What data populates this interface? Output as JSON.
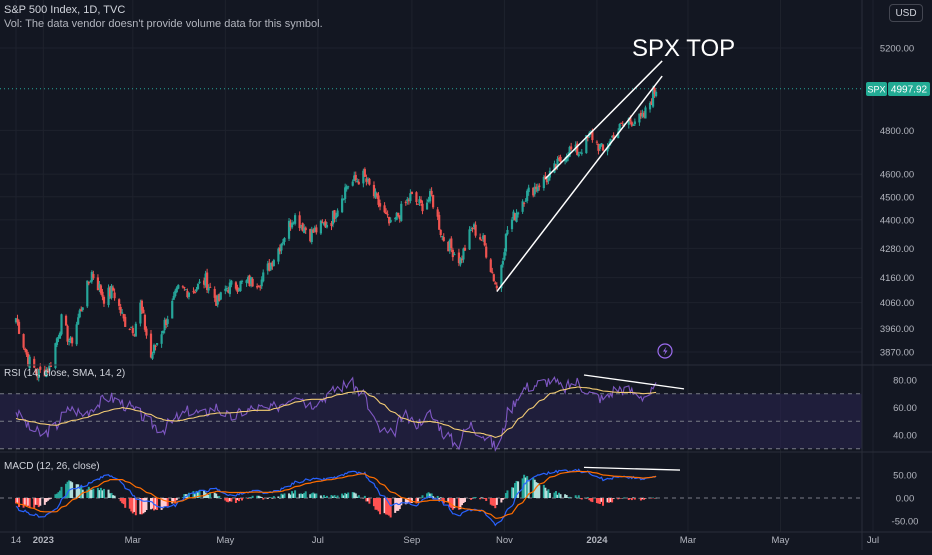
{
  "header": {
    "title": "S&P 500 Index, 1D, TVC",
    "volume_note": "Vol: The data vendor doesn't provide volume data for this symbol."
  },
  "currency_button": "USD",
  "annotation": "SPX TOP",
  "colors": {
    "background": "#131722",
    "up": "#26a69a",
    "down": "#ef5350",
    "rsi_line": "#7e57c2",
    "rsi_ma": "#f2cb74",
    "rsi_band": "#2a2450",
    "macd_line": "#2962ff",
    "signal_line": "#ff6d00",
    "price_label_bg": "#22ab94",
    "text": "#d1d4dc"
  },
  "chart_data": [
    {
      "type": "candlestick",
      "symbol": "SPX",
      "last_price": "4997.92",
      "price_ticks": [
        "5200.00",
        "4800.00",
        "4600.00",
        "4500.00",
        "4400.00",
        "4280.00",
        "4160.00",
        "4060.00",
        "3960.00",
        "3870.00"
      ],
      "date_ticks": [
        "14",
        "2023",
        "Mar",
        "May",
        "Jul",
        "Sep",
        "Nov",
        "2024",
        "Mar",
        "May",
        "Jul"
      ],
      "scale": "log",
      "trend_lines": [
        {
          "role": "wedge-lower",
          "from": [
            "2023-10-27",
            4104
          ],
          "to": [
            "2024-02-13",
            5060
          ]
        },
        {
          "role": "wedge-upper",
          "from": [
            "2023-11-28",
            4580
          ],
          "to": [
            "2024-02-13",
            5135
          ]
        }
      ],
      "closes_approx": [
        [
          "2022-12-14",
          4000
        ],
        [
          "2022-12-22",
          3840
        ],
        [
          "2022-12-28",
          3790
        ],
        [
          "2023-01-05",
          3810
        ],
        [
          "2023-01-13",
          3990
        ],
        [
          "2023-01-19",
          3900
        ],
        [
          "2023-02-02",
          4180
        ],
        [
          "2023-02-10",
          4080
        ],
        [
          "2023-02-16",
          4110
        ],
        [
          "2023-02-23",
          3990
        ],
        [
          "2023-03-02",
          3960
        ],
        [
          "2023-03-06",
          4050
        ],
        [
          "2023-03-13",
          3850
        ],
        [
          "2023-03-20",
          3950
        ],
        [
          "2023-03-31",
          4110
        ],
        [
          "2023-04-10",
          4110
        ],
        [
          "2023-04-18",
          4150
        ],
        [
          "2023-04-26",
          4060
        ],
        [
          "2023-05-02",
          4120
        ],
        [
          "2023-05-15",
          4140
        ],
        [
          "2023-05-25",
          4150
        ],
        [
          "2023-06-05",
          4280
        ],
        [
          "2023-06-15",
          4420
        ],
        [
          "2023-06-26",
          4340
        ],
        [
          "2023-07-10",
          4400
        ],
        [
          "2023-07-20",
          4550
        ],
        [
          "2023-07-31",
          4590
        ],
        [
          "2023-08-10",
          4470
        ],
        [
          "2023-08-18",
          4370
        ],
        [
          "2023-08-31",
          4500
        ],
        [
          "2023-09-07",
          4460
        ],
        [
          "2023-09-14",
          4500
        ],
        [
          "2023-09-21",
          4330
        ],
        [
          "2023-10-03",
          4230
        ],
        [
          "2023-10-11",
          4370
        ],
        [
          "2023-10-18",
          4310
        ],
        [
          "2023-10-27",
          4117
        ],
        [
          "2023-11-03",
          4360
        ],
        [
          "2023-11-14",
          4500
        ],
        [
          "2023-11-24",
          4560
        ],
        [
          "2023-12-01",
          4590
        ],
        [
          "2023-12-13",
          4710
        ],
        [
          "2023-12-20",
          4700
        ],
        [
          "2023-12-28",
          4780
        ],
        [
          "2024-01-05",
          4700
        ],
        [
          "2024-01-12",
          4780
        ],
        [
          "2024-01-22",
          4850
        ],
        [
          "2024-01-31",
          4850
        ],
        [
          "2024-02-09",
          5000
        ]
      ]
    },
    {
      "type": "line",
      "title": "RSI (14, close, SMA, 14, 2)",
      "y_ticks": [
        "80.00",
        "60.00",
        "40.00"
      ],
      "band": [
        30,
        70
      ],
      "series": [
        {
          "key": "RSI",
          "values_approx": [
            58,
            45,
            40,
            47,
            60,
            55,
            62,
            68,
            63,
            57,
            49,
            44,
            52,
            58,
            55,
            61,
            52,
            57,
            60,
            58,
            64,
            71,
            62,
            67,
            74,
            78,
            70,
            46,
            39,
            54,
            48,
            56,
            42,
            33,
            48,
            40,
            30,
            60,
            74,
            77,
            80,
            74,
            79,
            70,
            66,
            74,
            72,
            68,
            74
          ]
        },
        {
          "key": "SMA",
          "values_approx": [
            52,
            50,
            48,
            47,
            50,
            52,
            55,
            58,
            60,
            58,
            55,
            51,
            50,
            52,
            54,
            56,
            56,
            57,
            58,
            58,
            61,
            64,
            66,
            66,
            69,
            71,
            72,
            66,
            58,
            52,
            49,
            50,
            48,
            44,
            42,
            41,
            38,
            45,
            55,
            63,
            70,
            73,
            75,
            74,
            72,
            71,
            71,
            70,
            71
          ]
        }
      ],
      "divergence_line": {
        "from": 80,
        "to": 75
      }
    },
    {
      "type": "line",
      "title": "MACD (12, 26, close)",
      "y_ticks": [
        "50.00",
        "0.00",
        "-50.00"
      ],
      "series": [
        {
          "key": "MACD",
          "values_approx": [
            -20,
            -35,
            -40,
            -25,
            20,
            25,
            40,
            50,
            30,
            0,
            -10,
            -20,
            -15,
            10,
            15,
            20,
            5,
            10,
            15,
            10,
            20,
            35,
            40,
            40,
            45,
            55,
            55,
            20,
            -15,
            -10,
            -15,
            5,
            -10,
            -40,
            -25,
            -30,
            -60,
            -20,
            30,
            50,
            55,
            60,
            60,
            55,
            40,
            45,
            45,
            40,
            50
          ]
        },
        {
          "key": "Signal",
          "values_approx": [
            -10,
            -20,
            -30,
            -30,
            -10,
            10,
            25,
            40,
            40,
            25,
            10,
            -5,
            -10,
            0,
            5,
            15,
            12,
            12,
            13,
            12,
            15,
            25,
            33,
            38,
            42,
            48,
            53,
            40,
            15,
            0,
            -10,
            -5,
            -5,
            -20,
            -25,
            -28,
            -45,
            -35,
            -5,
            25,
            45,
            55,
            58,
            57,
            50,
            47,
            46,
            43,
            47
          ]
        }
      ],
      "divergence_line": {
        "from": 60,
        "to": 52
      }
    }
  ]
}
